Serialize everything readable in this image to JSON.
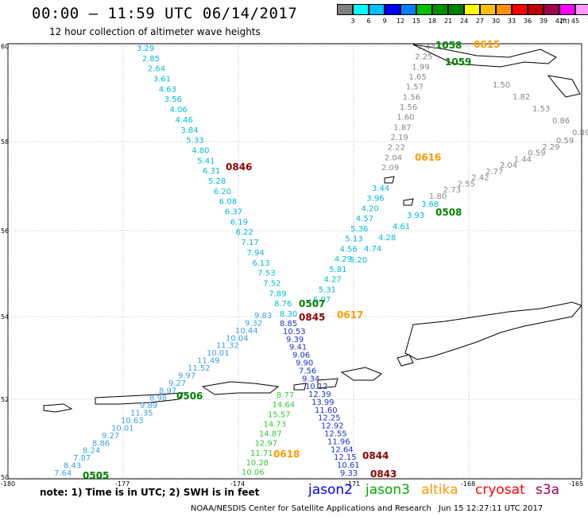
{
  "header": {
    "title": "00:00 – 11:59 UTC 06/14/2017",
    "subtitle": "12 hour collection of altimeter wave heights"
  },
  "colorbar": {
    "colors": [
      "#808080",
      "#00ffff",
      "#00bfff",
      "#0000ff",
      "#0080ff",
      "#00c000",
      "#009000",
      "#008000",
      "#ffff00",
      "#ffc000",
      "#ff9000",
      "#ff0000",
      "#c00000",
      "#a00050",
      "#ff00ff",
      "#ff99ff",
      "#000000"
    ],
    "ticks": [
      "3",
      "6",
      "9",
      "12",
      "15",
      "18",
      "21",
      "24",
      "27",
      "30",
      "33",
      "36",
      "39",
      "42",
      "45",
      "70"
    ],
    "unit": "(ft)"
  },
  "axes": {
    "lon_labels": [
      "-180",
      "-177",
      "-174",
      "-171",
      "-168",
      "-165"
    ],
    "lat_labels": [
      "60",
      "58",
      "56",
      "54",
      "52",
      "50"
    ]
  },
  "tracks": {
    "track_a_values": [
      "3.29",
      "2.85",
      "2.64",
      "3.61",
      "4.63",
      "3.56",
      "4.06",
      "4.46",
      "3.84",
      "5.33",
      "4.80",
      "5.41",
      "6.31",
      "5.28",
      "6.20",
      "6.08",
      "6.37",
      "6.19",
      "6.22",
      "7.17",
      "7.94",
      "6.13",
      "7.53",
      "7.52",
      "7.89",
      "8.76",
      "8.30"
    ],
    "track_b_values": [
      "7.64",
      "8.43",
      "7.87",
      "8.24",
      "8.86",
      "9.27",
      "10.01",
      "10.63",
      "11.35",
      "9.89",
      "8.98",
      "8.97",
      "9.27",
      "9.97",
      "11.52",
      "11.49",
      "10.01",
      "11.32",
      "10.04",
      "10.44",
      "9.32",
      "9.83"
    ],
    "track_c_values": [
      "8.85",
      "10.53",
      "9.39",
      "9.41",
      "9.06",
      "9.90",
      "7.56",
      "9.34",
      "10.12",
      "12.39",
      "13.99",
      "11.60",
      "12.25",
      "12.92",
      "12.55",
      "11.96",
      "12.64",
      "12.15",
      "10.61",
      "9.33"
    ],
    "track_d_values": [
      "8.77",
      "14.64",
      "15.57",
      "14.73",
      "14.87",
      "12.97",
      "11.71",
      "10.28",
      "10.06"
    ],
    "track_e_values": [
      "2.44",
      "2.25",
      "1.99",
      "1.65",
      "1.57",
      "1.56",
      "1.56",
      "1.60",
      "1.87",
      "2.19",
      "2.22",
      "2.04",
      "2.09"
    ],
    "track_f_values": [
      "3.44",
      "3.96",
      "4.20",
      "4.57",
      "5.36",
      "5.13",
      "4.56",
      "4.29",
      "5.81",
      "4.27",
      "5.31",
      "6.07"
    ],
    "track_g_values": [
      "3.68",
      "3.93",
      "4.61",
      "4.28",
      "4.74",
      "5.20"
    ],
    "track_h_values": [
      "1.80",
      "2.73",
      "2.55",
      "2.42",
      "2.77",
      "2.04",
      "1.44",
      "0.59",
      "2.29",
      "0.59"
    ],
    "track_i_values": [
      "1.50",
      "1.82",
      "1.53",
      "0.86",
      "0.89"
    ],
    "time_tags": [
      {
        "text": "0846",
        "color": "#8b0000"
      },
      {
        "text": "0615",
        "color": "#ff9900"
      },
      {
        "text": "0616",
        "color": "#ff9900"
      },
      {
        "text": "0617",
        "color": "#ff9900"
      },
      {
        "text": "0618",
        "color": "#ff9900"
      },
      {
        "text": "1058",
        "color": "#008000"
      },
      {
        "text": "1059",
        "color": "#008000"
      },
      {
        "text": "0508",
        "color": "#008000"
      },
      {
        "text": "0507",
        "color": "#008000"
      },
      {
        "text": "0506",
        "color": "#008000"
      },
      {
        "text": "0505",
        "color": "#008000"
      },
      {
        "text": "0845",
        "color": "#8b0000"
      },
      {
        "text": "0844",
        "color": "#8b0000"
      },
      {
        "text": "0843",
        "color": "#8b0000"
      }
    ]
  },
  "footer": {
    "note": "note:  1) Time is in UTC;  2) SWH is in feet",
    "legend": [
      {
        "text": "jason2",
        "color": "#0000ff"
      },
      {
        "text": "jason3",
        "color": "#00aa00"
      },
      {
        "text": "altika",
        "color": "#ff9900"
      },
      {
        "text": "cryosat",
        "color": "#ff0000"
      },
      {
        "text": "s3a",
        "color": "#a00050"
      }
    ],
    "credit": "NOAA/NESDIS Center for Satellite Applications and Research",
    "stamp": "Jun 15 12:27:11 UTC 2017"
  }
}
